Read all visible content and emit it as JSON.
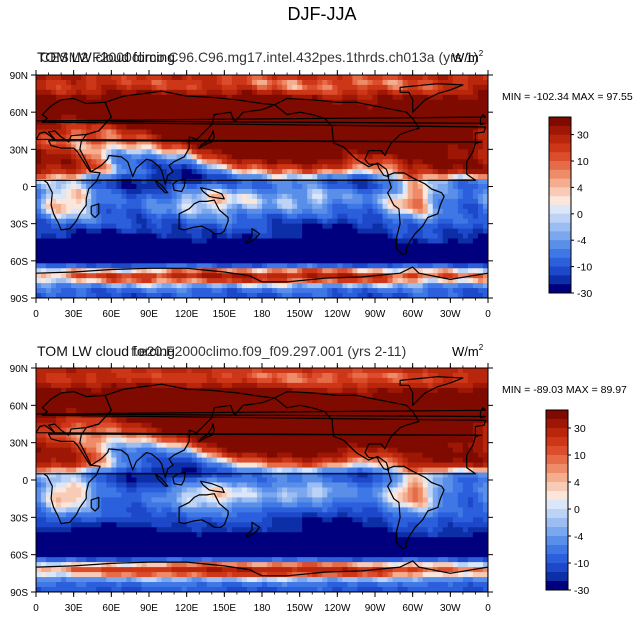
{
  "figure_title": "DJF-JJA",
  "chart_data": [
    {
      "type": "heatmap",
      "subtitle_a": "TOM LW cloud forcing",
      "subtitle_b": "CESM2 F2000climo C96.C96.mg17.intel.432pes.1thrds.ch013a (yrs 1)",
      "units": "W/m",
      "units_sup": "2",
      "stats": "MIN = -102.34 MAX =  97.55",
      "xticks": [
        "0",
        "30E",
        "60E",
        "90E",
        "120E",
        "150E",
        "180",
        "150W",
        "120W",
        "90W",
        "60W",
        "30W",
        "0"
      ],
      "yticks": [
        "90N",
        "60N",
        "30N",
        "0",
        "30S",
        "60S",
        "90S"
      ],
      "colorbar_labels": [
        "30",
        "10",
        "4",
        "0",
        "-4",
        "-10",
        "-30"
      ],
      "colorbar_levels": [
        -40,
        -35,
        -30,
        -25,
        -20,
        -15,
        -10,
        -8,
        -6,
        -4,
        -2,
        0,
        2,
        4,
        6,
        8,
        10,
        15,
        20,
        25,
        30,
        35,
        40
      ]
    },
    {
      "type": "heatmap",
      "subtitle_a": "TOM LW cloud forcing",
      "subtitle_b": "f.e20.F2000climo.f09_f09.297.001 (yrs 2-11)",
      "units": "W/m",
      "units_sup": "2",
      "stats": "MIN = -89.03 MAX =  89.97",
      "xticks": [
        "0",
        "30E",
        "60E",
        "90E",
        "120E",
        "150E",
        "180",
        "150W",
        "120W",
        "90W",
        "60W",
        "30W",
        "0"
      ],
      "yticks": [
        "90N",
        "60N",
        "30N",
        "0",
        "30S",
        "60S",
        "90S"
      ],
      "colorbar_labels": [
        "30",
        "10",
        "4",
        "0",
        "-4",
        "-10",
        "-30"
      ],
      "colorbar_levels": [
        -40,
        -35,
        -30,
        -25,
        -20,
        -15,
        -10,
        -8,
        -6,
        -4,
        -2,
        0,
        2,
        4,
        6,
        8,
        10,
        15,
        20,
        25,
        30,
        35,
        40
      ]
    }
  ],
  "colors": {
    "scale": [
      "#00007e",
      "#0c2ea6",
      "#1c48c9",
      "#2b5fdc",
      "#3f78e6",
      "#5a8fe9",
      "#7aa7ee",
      "#9cbdf2",
      "#bcd3f6",
      "#dbe7f9",
      "#fbe6dc",
      "#f8cbb6",
      "#f4ad8f",
      "#ee8b68",
      "#e66b48",
      "#db4d2c",
      "#cd3718",
      "#b8260c",
      "#9e1605",
      "#7e0a00"
    ]
  }
}
